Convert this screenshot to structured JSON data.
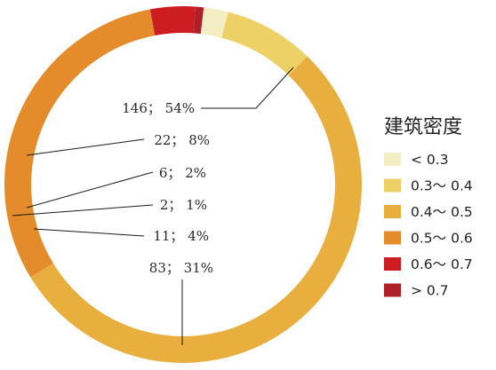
{
  "chart_data": {
    "type": "pie",
    "title": "",
    "legend": {
      "title": "建筑密度",
      "placement": "right"
    },
    "series": [
      {
        "name": "0.4～ 0.5",
        "count": 146,
        "percent": 54,
        "label": "146； 54%",
        "color": "#E8AE3E"
      },
      {
        "name": "0.5～ 0.6",
        "count": 83,
        "percent": 31,
        "label": "83； 31%",
        "color": "#E48B2C"
      },
      {
        "name": "0.6～ 0.7",
        "count": 11,
        "percent": 4,
        "label": "11； 4%",
        "color": "#CC1E22"
      },
      {
        "name": "> 0.7",
        "count": 2,
        "percent": 1,
        "label": "2； 1%",
        "color": "#B0202A"
      },
      {
        "name": "< 0.3",
        "count": 6,
        "percent": 2,
        "label": "6； 2%",
        "color": "#F3EDC3"
      },
      {
        "name": "0.3～ 0.4",
        "count": 22,
        "percent": 8,
        "label": "22； 8%",
        "color": "#EDD066"
      }
    ],
    "legend_order": [
      "< 0.3",
      "0.3～ 0.4",
      "0.4～ 0.5",
      "0.5～ 0.6",
      "0.6～ 0.7",
      "> 0.7"
    ]
  }
}
